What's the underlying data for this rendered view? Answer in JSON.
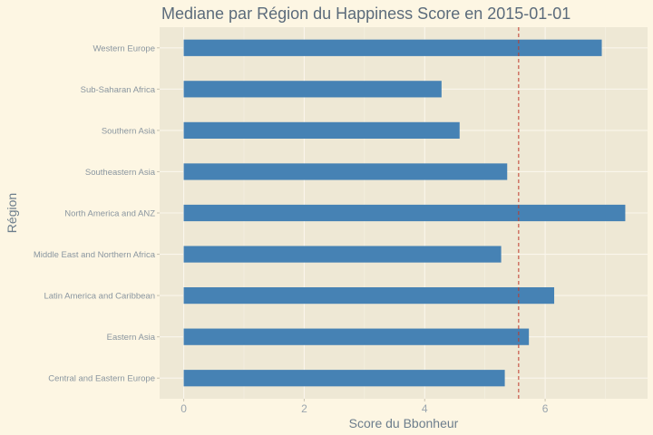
{
  "chart_data": {
    "type": "bar",
    "orientation": "horizontal",
    "title": "Mediane par Région du Happiness Score en 2015-01-01",
    "xlabel": "Score du Bbonheur",
    "ylabel": "Région",
    "categories": [
      "Central and Eastern Europe",
      "Eastern Asia",
      "Latin America and Caribbean",
      "Middle East and Northern Africa",
      "North America and ANZ",
      "Southeastern Asia",
      "Southern Asia",
      "Sub-Saharan Africa",
      "Western Europe"
    ],
    "values": [
      5.33,
      5.73,
      6.15,
      5.27,
      7.33,
      5.37,
      4.58,
      4.28,
      6.94
    ],
    "xlim": [
      -0.4,
      7.7
    ],
    "x_ticks": [
      0,
      2,
      4,
      6
    ],
    "reference_line": {
      "value": 5.56,
      "style": "dashed",
      "color": "#c0392b"
    },
    "bar_color": "#4682b4",
    "panel_color": "#eee8d5",
    "grid": true,
    "legend": "none"
  }
}
